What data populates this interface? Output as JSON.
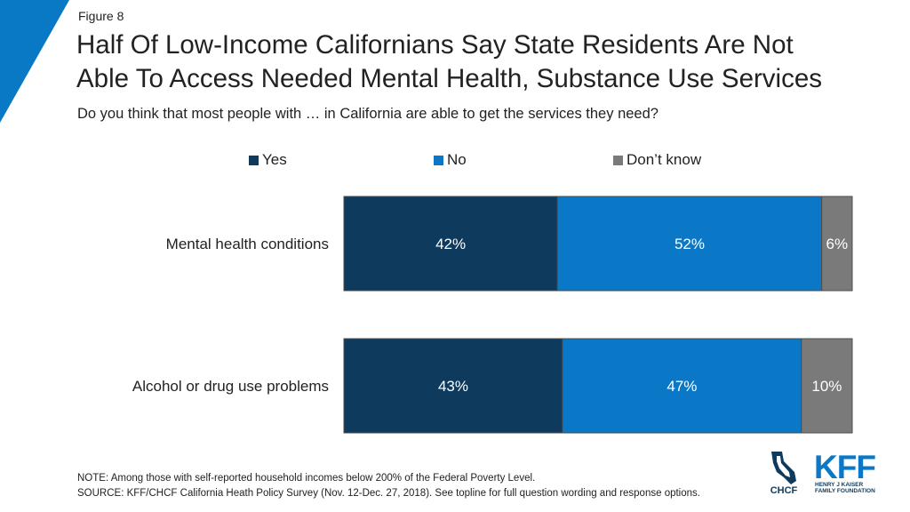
{
  "figure_label": "Figure 8",
  "title_line1": "Half Of Low-Income Californians Say State Residents Are Not",
  "title_line2": "Able To Access Needed Mental Health, Substance Use Services",
  "subtitle": "Do you think that most people with … in California are able to get the services they need?",
  "colors": {
    "yes": "#0e3a5e",
    "no": "#0b78c7",
    "dont_know": "#7a7a7a",
    "corner": "#0a79c5"
  },
  "chart_data": {
    "type": "bar",
    "orientation": "horizontal",
    "stacked": true,
    "categories": [
      "Mental health conditions",
      "Alcohol or drug use problems"
    ],
    "series": [
      {
        "name": "Yes",
        "values": [
          42,
          43
        ],
        "labels": [
          "42%",
          "43%"
        ]
      },
      {
        "name": "No",
        "values": [
          52,
          47
        ],
        "labels": [
          "52%",
          "47%"
        ]
      },
      {
        "name": "Don’t know",
        "values": [
          6,
          10
        ],
        "labels": [
          "6%",
          "10%"
        ]
      }
    ],
    "xlim": [
      0,
      100
    ],
    "legend": "top",
    "grid": false
  },
  "footnotes": {
    "note": "NOTE: Among those with self-reported household incomes below 200% of the Federal Poverty Level.",
    "source": "SOURCE: KFF/CHCF California Heath Policy Survey (Nov. 12-Dec. 27, 2018). See topline for full question wording and response options."
  },
  "logos": {
    "chcf": "CHCF",
    "kff": "KFF",
    "kff_line1": "HENRY J KAISER",
    "kff_line2": "FAMILY FOUNDATION"
  }
}
